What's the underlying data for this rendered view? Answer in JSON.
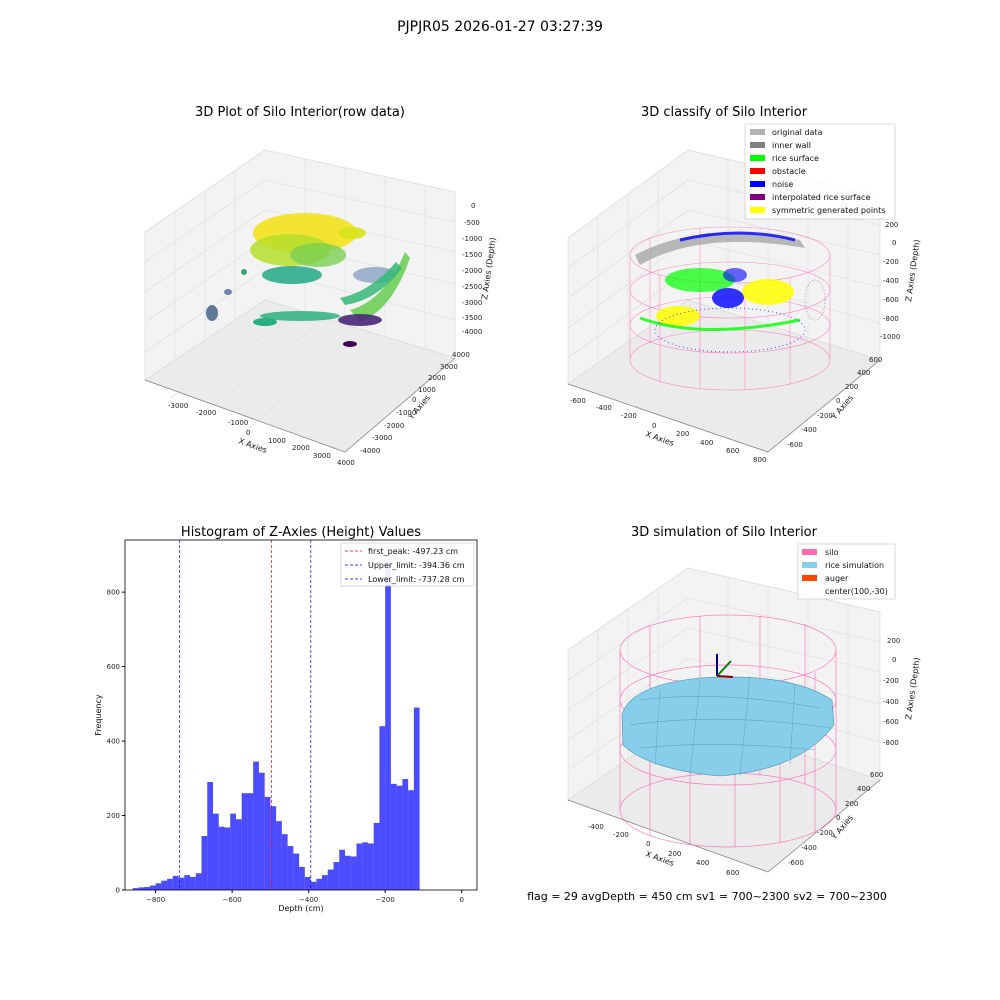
{
  "header": {
    "title": "PJPJR05 2026-01-27 03:27:39"
  },
  "footer": {
    "text": "flag = 29  avgDepth = 450 cm  sv1 = 700~2300  sv2 = 700~2300"
  },
  "panels": {
    "raw": {
      "title": "3D Plot of Silo Interior(row data)",
      "xlabel": "X Axies",
      "ylabel": "Y Axies",
      "zlabel": "Z Axies (Depth)",
      "x_ticks": [
        "-3000",
        "-2000",
        "-1000",
        "0",
        "1000",
        "2000",
        "3000",
        "4000"
      ],
      "y_ticks": [
        "-4000",
        "-3000",
        "-2000",
        "-1000",
        "0",
        "1000",
        "2000",
        "3000",
        "4000"
      ],
      "z_ticks": [
        "0",
        "-500",
        "-1000",
        "-1500",
        "-2000",
        "-2500",
        "-3000",
        "-3500",
        "-4000"
      ]
    },
    "classify": {
      "title": "3D classify of Silo Interior",
      "xlabel": "X Axies",
      "ylabel": "Y Axies",
      "zlabel": "Z Axies (Depth)",
      "x_ticks": [
        "-600",
        "-400",
        "-200",
        "0",
        "200",
        "400",
        "600",
        "800"
      ],
      "y_ticks": [
        "-600",
        "-400",
        "-200",
        "0",
        "200",
        "400",
        "600"
      ],
      "z_ticks": [
        "200",
        "0",
        "-200",
        "-400",
        "-600",
        "-800",
        "-1000"
      ],
      "legend": [
        {
          "label": "original data",
          "color": "#b3b3b3"
        },
        {
          "label": "inner wall",
          "color": "#808080"
        },
        {
          "label": "rice surface",
          "color": "#00ff00"
        },
        {
          "label": "obstacle",
          "color": "#ff0000"
        },
        {
          "label": "noise",
          "color": "#0000ff"
        },
        {
          "label": "interpolated rice surface",
          "color": "#800080"
        },
        {
          "label": "symmetric generated points",
          "color": "#ffff00"
        }
      ]
    },
    "simulation": {
      "title": "3D simulation of Silo Interior",
      "xlabel": "X Axies",
      "ylabel": "Y Axies",
      "zlabel": "Z Axies (Depth)",
      "x_ticks": [
        "-400",
        "-200",
        "0",
        "200",
        "400",
        "600"
      ],
      "y_ticks": [
        "-600",
        "-400",
        "-200",
        "0",
        "200",
        "400",
        "600"
      ],
      "z_ticks": [
        "200",
        "0",
        "-200",
        "-400",
        "-600",
        "-800"
      ],
      "legend": [
        {
          "label": "silo",
          "color": "#ff69b4"
        },
        {
          "label": "rice simulation",
          "color": "#87ceeb"
        },
        {
          "label": "auger",
          "color": "#ff4500"
        },
        {
          "label": "center(100,-30)",
          "color": ""
        }
      ]
    }
  },
  "chart_data": {
    "type": "bar",
    "title": "Histogram of Z-Axies (Height) Values",
    "xlabel": "Depth (cm)",
    "ylabel": "Frequency",
    "xlim": [
      -880,
      40
    ],
    "ylim": [
      0,
      940
    ],
    "x_ticks": [
      -800,
      -600,
      -400,
      -200,
      0
    ],
    "y_ticks": [
      0,
      200,
      400,
      600,
      800
    ],
    "bin_start": -860,
    "bin_width": 15,
    "color": "#0000ff",
    "values": [
      5,
      7,
      8,
      12,
      18,
      25,
      30,
      38,
      33,
      40,
      35,
      45,
      145,
      290,
      205,
      170,
      168,
      205,
      190,
      260,
      260,
      345,
      315,
      250,
      225,
      185,
      150,
      118,
      98,
      62,
      35,
      22,
      30,
      40,
      55,
      75,
      108,
      92,
      90,
      125,
      128,
      125,
      180,
      440,
      885,
      285,
      280,
      298,
      268,
      490
    ],
    "lines": [
      {
        "label": "first_peak: -497.23 cm",
        "x": -497.23,
        "color": "#ff0000"
      },
      {
        "label": "Upper_limit: -394.36 cm",
        "x": -394.36,
        "color": "#0000ff"
      },
      {
        "label": "Lower_limit: -737.28 cm",
        "x": -737.28,
        "color": "#0000ff"
      }
    ]
  }
}
